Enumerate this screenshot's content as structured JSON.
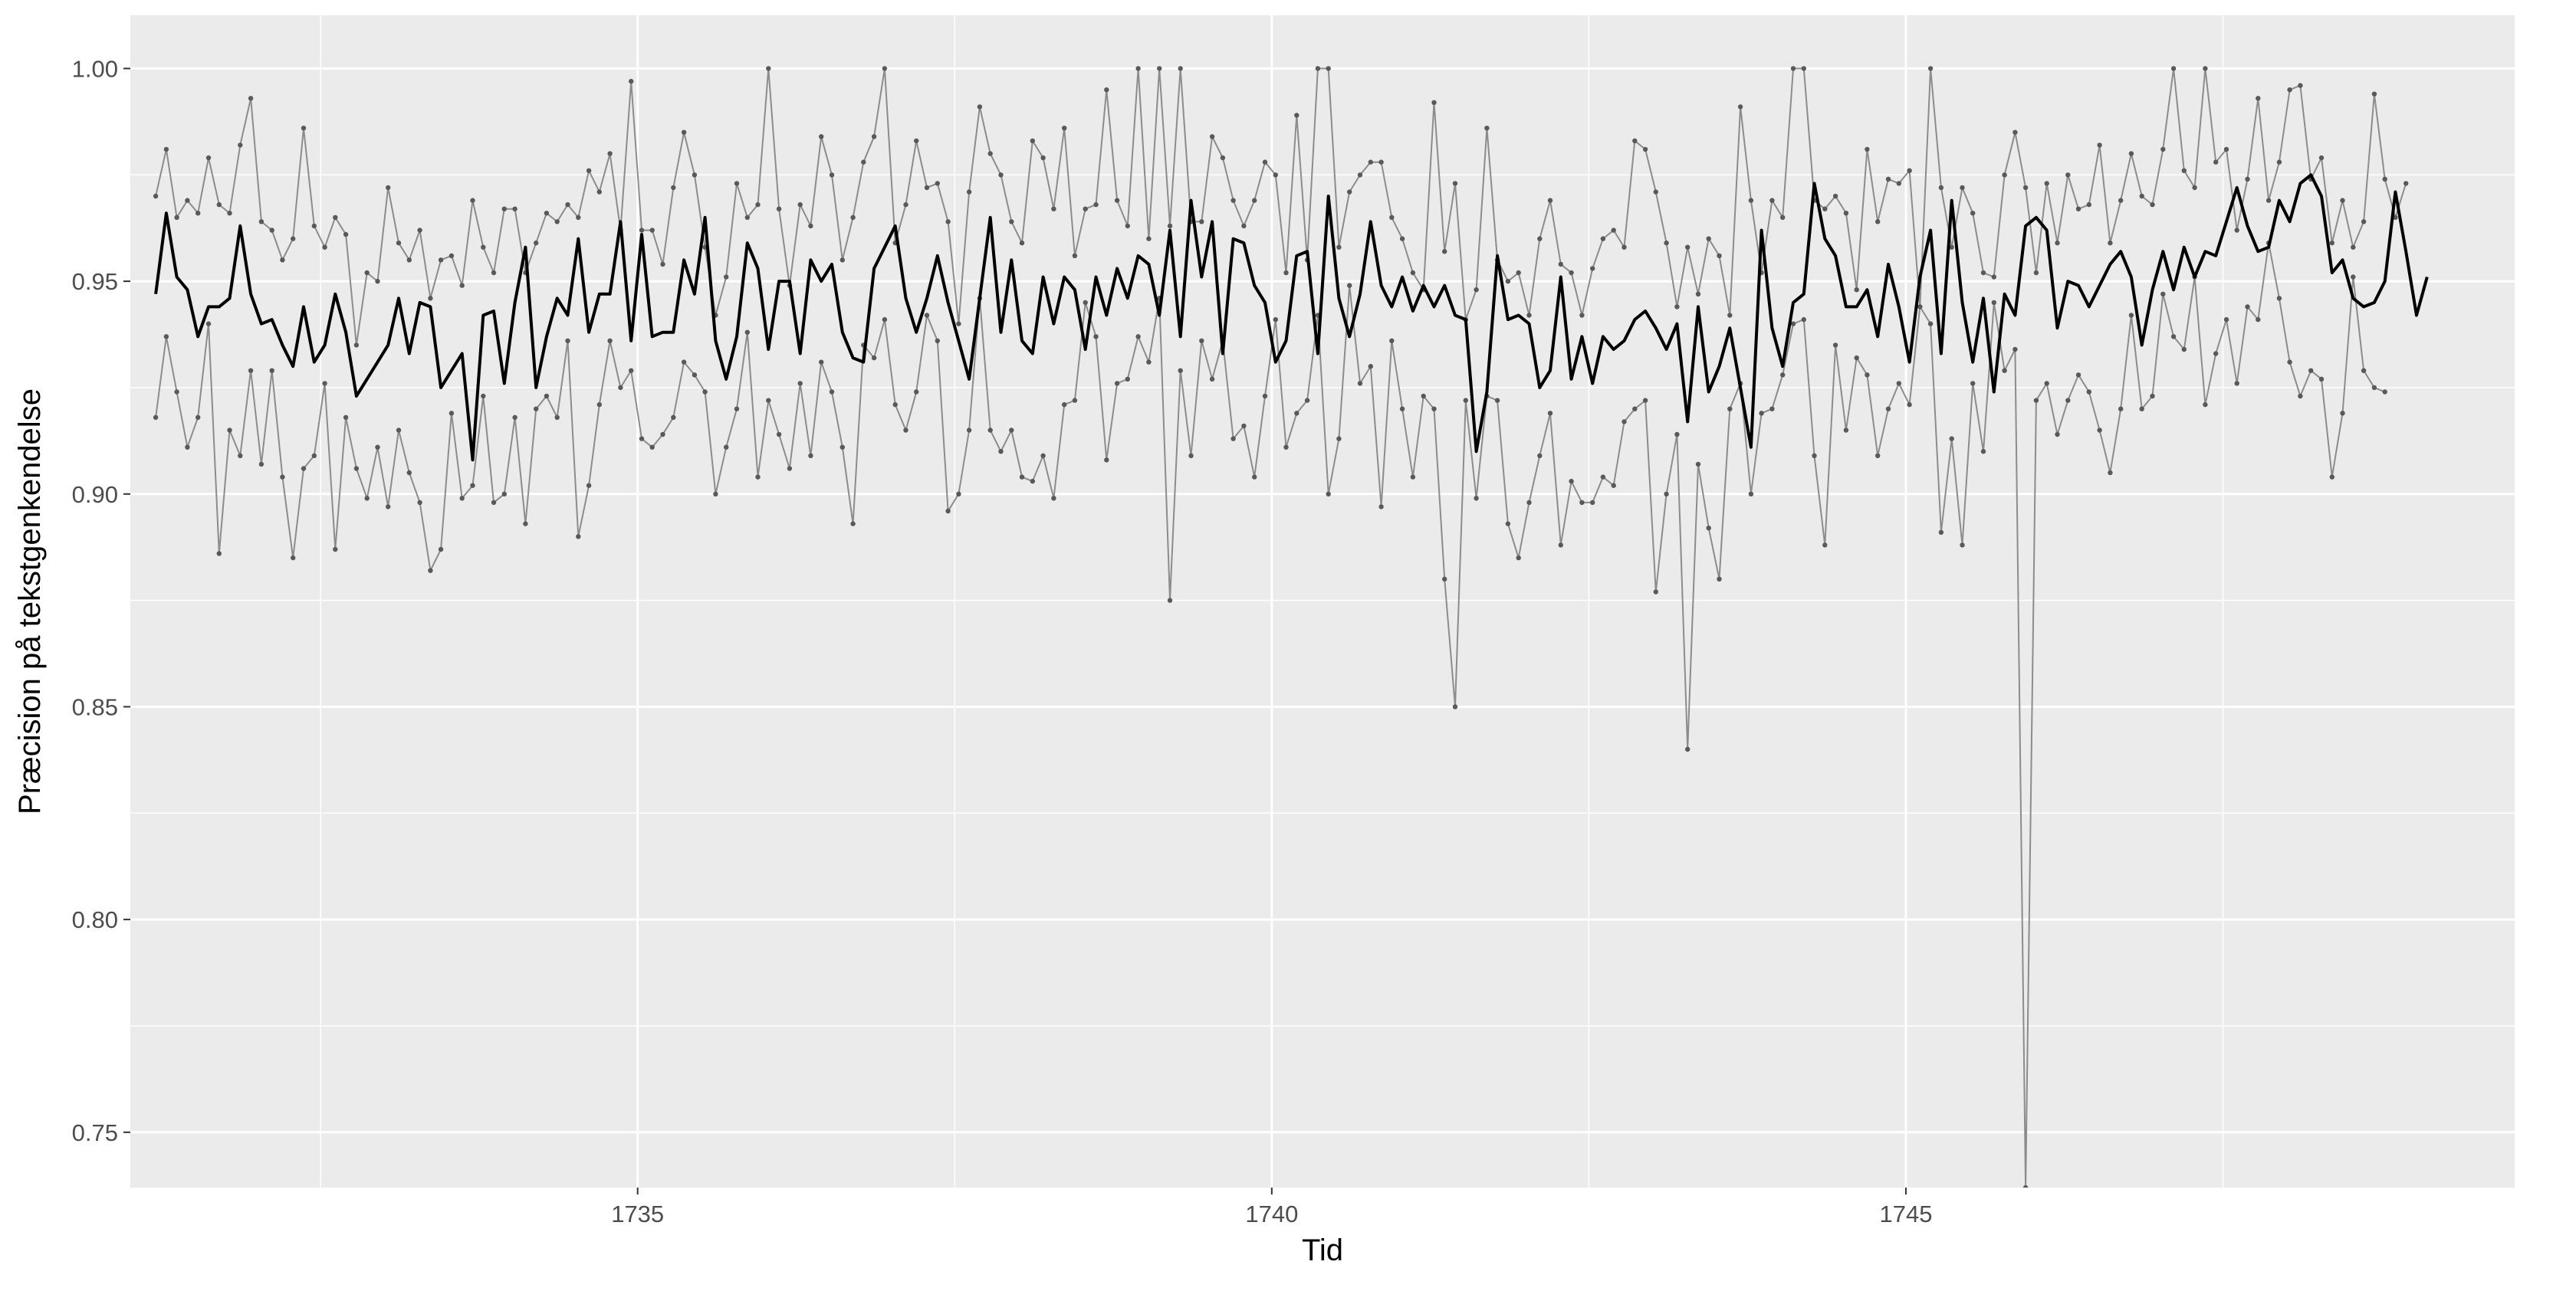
{
  "chart_data": {
    "type": "line",
    "title": "",
    "xlabel": "Tid",
    "ylabel": "Præcision på tekstgenkendelse",
    "xlim": [
      1731.0,
      1749.8
    ],
    "ylim": [
      0.737,
      1.0125
    ],
    "x_ticks": [
      1735,
      1740,
      1745
    ],
    "x_tick_labels": [
      "1735",
      "1740",
      "1745"
    ],
    "y_ticks": [
      0.75,
      0.8,
      0.85,
      0.9,
      0.95,
      1.0
    ],
    "y_tick_labels": [
      "0.75",
      "0.80",
      "0.85",
      "0.90",
      "0.95",
      "1.00"
    ],
    "grid": true,
    "legend": "none",
    "colors": {
      "panel_background": "#ebebeb",
      "grid_major": "#ffffff",
      "mean_line": "#000000",
      "bounds_line": "#8c8c8c",
      "bounds_points": "#595959"
    },
    "x_start": 1731.2,
    "x_step": 0.0833,
    "series": [
      {
        "role": "mean",
        "values": [
          0.947,
          0.966,
          0.951,
          0.948,
          0.937,
          0.944,
          0.944,
          0.946,
          0.963,
          0.947,
          0.94,
          0.941,
          0.935,
          0.93,
          0.944,
          0.931,
          0.935,
          0.947,
          0.938,
          0.923,
          0.927,
          0.931,
          0.935,
          0.946,
          0.933,
          0.945,
          0.944,
          0.925,
          0.929,
          0.933,
          0.908,
          0.942,
          0.943,
          0.926,
          0.945,
          0.958,
          0.925,
          0.937,
          0.946,
          0.942,
          0.96,
          0.938,
          0.947,
          0.947,
          0.964,
          0.936,
          0.961,
          0.937,
          0.938,
          0.938,
          0.955,
          0.947,
          0.965,
          0.936,
          0.927,
          0.937,
          0.959,
          0.953,
          0.934,
          0.95,
          0.95,
          0.933,
          0.955,
          0.95,
          0.954,
          0.938,
          0.932,
          0.931,
          0.953,
          0.958,
          0.963,
          0.946,
          0.938,
          0.946,
          0.956,
          0.945,
          0.936,
          0.927,
          0.946,
          0.965,
          0.938,
          0.955,
          0.936,
          0.933,
          0.951,
          0.94,
          0.951,
          0.948,
          0.934,
          0.951,
          0.942,
          0.953,
          0.946,
          0.956,
          0.954,
          0.942,
          0.962,
          0.937,
          0.969,
          0.951,
          0.964,
          0.933,
          0.96,
          0.959,
          0.949,
          0.945,
          0.931,
          0.936,
          0.956,
          0.957,
          0.933,
          0.97,
          0.946,
          0.937,
          0.947,
          0.964,
          0.949,
          0.944,
          0.951,
          0.943,
          0.949,
          0.944,
          0.949,
          0.942,
          0.941,
          0.91,
          0.924,
          0.956,
          0.941,
          0.942,
          0.94,
          0.925,
          0.929,
          0.951,
          0.927,
          0.937,
          0.926,
          0.937,
          0.934,
          0.936,
          0.941,
          0.943,
          0.939,
          0.934,
          0.94,
          0.917,
          0.944,
          0.924,
          0.93,
          0.939,
          0.925,
          0.911,
          0.962,
          0.939,
          0.93,
          0.945,
          0.947,
          0.973,
          0.96,
          0.956,
          0.944,
          0.944,
          0.948,
          0.937,
          0.954,
          0.944,
          0.931,
          0.951,
          0.962,
          0.933,
          0.969,
          0.945,
          0.931,
          0.946,
          0.924,
          0.947,
          0.942,
          0.963,
          0.965,
          0.962,
          0.939,
          0.95,
          0.949,
          0.944,
          0.949,
          0.954,
          0.957,
          0.951,
          0.935,
          0.948,
          0.957,
          0.948,
          0.958,
          0.951,
          0.957,
          0.956,
          0.964,
          0.972,
          0.963,
          0.957,
          0.958,
          0.969,
          0.964,
          0.973,
          0.975,
          0.97,
          0.952,
          0.955,
          0.946,
          0.944,
          0.945,
          0.95,
          0.971,
          0.957,
          0.942,
          0.951
        ]
      },
      {
        "role": "upper",
        "values": [
          0.97,
          0.981,
          0.965,
          0.969,
          0.966,
          0.979,
          0.968,
          0.966,
          0.982,
          0.993,
          0.964,
          0.962,
          0.955,
          0.96,
          0.986,
          0.963,
          0.958,
          0.965,
          0.961,
          0.935,
          0.952,
          0.95,
          0.972,
          0.959,
          0.955,
          0.962,
          0.946,
          0.955,
          0.956,
          0.949,
          0.969,
          0.958,
          0.952,
          0.967,
          0.967,
          0.952,
          0.959,
          0.966,
          0.964,
          0.968,
          0.965,
          0.976,
          0.971,
          0.98,
          0.962,
          0.997,
          0.962,
          0.962,
          0.954,
          0.972,
          0.985,
          0.975,
          0.958,
          0.942,
          0.951,
          0.973,
          0.965,
          0.968,
          1.0,
          0.967,
          0.949,
          0.968,
          0.963,
          0.984,
          0.975,
          0.955,
          0.965,
          0.978,
          0.984,
          1.0,
          0.959,
          0.968,
          0.983,
          0.972,
          0.973,
          0.964,
          0.94,
          0.971,
          0.991,
          0.98,
          0.975,
          0.964,
          0.959,
          0.983,
          0.979,
          0.967,
          0.986,
          0.956,
          0.967,
          0.968,
          0.995,
          0.969,
          0.963,
          1.0,
          0.96,
          1.0,
          0.963,
          1.0,
          0.964,
          0.964,
          0.984,
          0.979,
          0.969,
          0.963,
          0.969,
          0.978,
          0.975,
          0.952,
          0.989,
          0.955,
          1.0,
          1.0,
          0.958,
          0.971,
          0.975,
          0.978,
          0.978,
          0.965,
          0.96,
          0.952,
          0.948,
          0.992,
          0.957,
          0.973,
          0.941,
          0.948,
          0.986,
          0.955,
          0.95,
          0.952,
          0.942,
          0.96,
          0.969,
          0.954,
          0.952,
          0.942,
          0.953,
          0.96,
          0.962,
          0.958,
          0.983,
          0.981,
          0.971,
          0.959,
          0.944,
          0.958,
          0.947,
          0.96,
          0.956,
          0.942,
          0.991,
          0.969,
          0.952,
          0.969,
          0.965,
          1.0,
          1.0,
          0.969,
          0.967,
          0.97,
          0.966,
          0.948,
          0.981,
          0.964,
          0.974,
          0.973,
          0.976,
          0.944,
          1.0,
          0.972,
          0.958,
          0.972,
          0.966,
          0.952,
          0.951,
          0.975,
          0.985,
          0.972,
          0.952,
          0.973,
          0.959,
          0.975,
          0.967,
          0.968,
          0.982,
          0.959,
          0.969,
          0.98,
          0.97,
          0.968,
          0.981,
          1.0,
          0.976,
          0.972,
          1.0,
          0.978,
          0.981,
          0.962,
          0.974,
          0.993,
          0.969,
          0.978,
          0.995,
          0.996,
          0.974,
          0.979,
          0.959,
          0.969,
          0.958,
          0.964,
          0.994,
          0.974,
          0.965,
          0.973
        ]
      },
      {
        "role": "lower",
        "values": [
          0.918,
          0.937,
          0.924,
          0.911,
          0.918,
          0.94,
          0.886,
          0.915,
          0.909,
          0.929,
          0.907,
          0.929,
          0.904,
          0.885,
          0.906,
          0.909,
          0.926,
          0.887,
          0.918,
          0.906,
          0.899,
          0.911,
          0.897,
          0.915,
          0.905,
          0.898,
          0.882,
          0.887,
          0.919,
          0.899,
          0.902,
          0.923,
          0.898,
          0.9,
          0.918,
          0.893,
          0.92,
          0.923,
          0.918,
          0.936,
          0.89,
          0.902,
          0.921,
          0.936,
          0.925,
          0.929,
          0.913,
          0.911,
          0.914,
          0.918,
          0.931,
          0.928,
          0.924,
          0.9,
          0.911,
          0.92,
          0.938,
          0.904,
          0.922,
          0.914,
          0.906,
          0.926,
          0.909,
          0.931,
          0.924,
          0.911,
          0.893,
          0.935,
          0.932,
          0.941,
          0.921,
          0.915,
          0.924,
          0.942,
          0.936,
          0.896,
          0.9,
          0.915,
          0.946,
          0.915,
          0.91,
          0.915,
          0.904,
          0.903,
          0.909,
          0.899,
          0.921,
          0.922,
          0.945,
          0.937,
          0.908,
          0.926,
          0.927,
          0.937,
          0.931,
          0.946,
          0.875,
          0.929,
          0.909,
          0.936,
          0.927,
          0.936,
          0.913,
          0.916,
          0.904,
          0.923,
          0.941,
          0.911,
          0.919,
          0.922,
          0.942,
          0.9,
          0.913,
          0.949,
          0.926,
          0.93,
          0.897,
          0.936,
          0.92,
          0.904,
          0.923,
          0.92,
          0.88,
          0.85,
          0.922,
          0.899,
          0.923,
          0.922,
          0.893,
          0.885,
          0.898,
          0.909,
          0.919,
          0.888,
          0.903,
          0.898,
          0.898,
          0.904,
          0.902,
          0.917,
          0.92,
          0.922,
          0.877,
          0.9,
          0.914,
          0.84,
          0.907,
          0.892,
          0.88,
          0.92,
          0.926,
          0.9,
          0.919,
          0.92,
          0.928,
          0.94,
          0.941,
          0.909,
          0.888,
          0.935,
          0.915,
          0.932,
          0.928,
          0.909,
          0.92,
          0.926,
          0.921,
          0.944,
          0.94,
          0.891,
          0.913,
          0.888,
          0.926,
          0.91,
          0.945,
          0.929,
          0.934,
          0.737,
          0.922,
          0.926,
          0.914,
          0.922,
          0.928,
          0.924,
          0.915,
          0.905,
          0.92,
          0.942,
          0.92,
          0.923,
          0.947,
          0.937,
          0.934,
          0.951,
          0.921,
          0.933,
          0.941,
          0.926,
          0.944,
          0.941,
          0.959,
          0.946,
          0.931,
          0.923,
          0.929,
          0.927,
          0.904,
          0.919,
          0.951,
          0.929,
          0.925,
          0.924
        ]
      }
    ]
  }
}
